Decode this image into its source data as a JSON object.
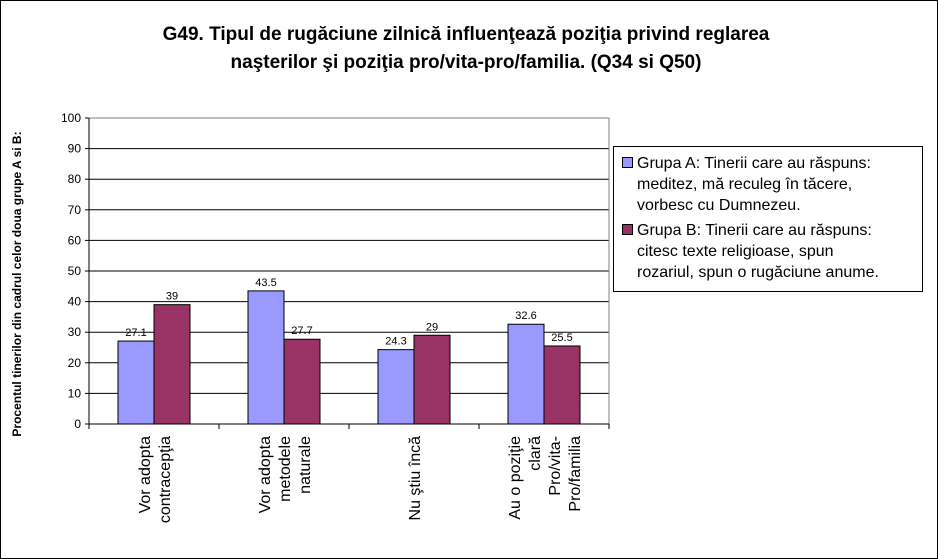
{
  "chart_data": {
    "type": "bar",
    "title_lines": [
      "G49. Tipul de rugăciune zilnică influenţează poziţia privind reglarea",
      "naşterilor şi poziţia pro/vita-pro/familia. (Q34 si Q50)"
    ],
    "ylabel": "Procentul tinerilor din cadrul celor doua grupe A si B:",
    "ylim": [
      0,
      100
    ],
    "yticks": [
      0,
      10,
      20,
      30,
      40,
      50,
      60,
      70,
      80,
      90,
      100
    ],
    "grid": true,
    "legend_position": "right",
    "categories": [
      [
        "Vor adopta",
        "contracepţia"
      ],
      [
        "Vor adopta",
        "metodele",
        "naturale"
      ],
      [
        "Nu ştiu încă"
      ],
      [
        "Au o poziţie",
        "clară",
        "Pro/vita-",
        "Pro/familia"
      ]
    ],
    "series": [
      {
        "name": "Grupa A: Tinerii care au răspuns: meditez, mă reculeg în tăcere, vorbesc cu Dumnezeu.",
        "legend_lines": [
          "Grupa A: Tinerii care au răspuns:",
          "meditez, mă reculeg în tăcere,",
          "vorbesc cu Dumnezeu."
        ],
        "color": "#9999ff",
        "values": [
          27.1,
          43.5,
          24.3,
          32.6
        ]
      },
      {
        "name": "Grupa B: Tinerii care au răspuns: citesc texte religioase, spun rozariul, spun o rugăciune anume.",
        "legend_lines": [
          "Grupa B: Tinerii care au răspuns:",
          "citesc texte religioase, spun",
          "rozariul, spun o rugăciune anume."
        ],
        "color": "#993366",
        "values": [
          39,
          27.7,
          29,
          25.5
        ]
      }
    ]
  }
}
